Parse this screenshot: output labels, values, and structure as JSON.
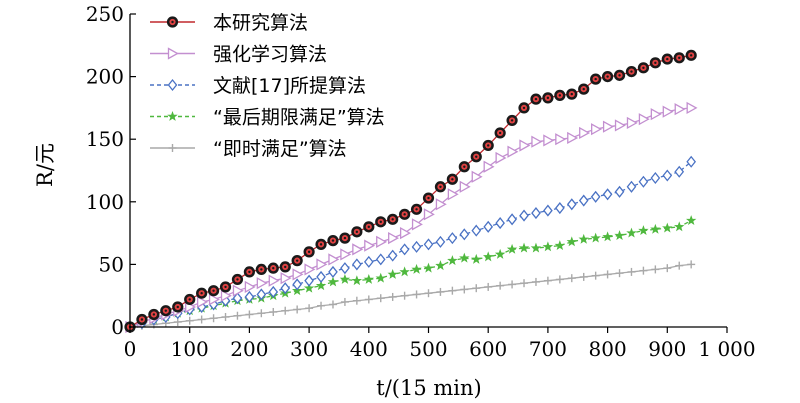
{
  "chart_data": {
    "type": "line",
    "xlabel": "t/(15 min)",
    "ylabel": "R/元",
    "xlim": [
      0,
      1000
    ],
    "ylim": [
      0,
      250
    ],
    "x_ticks": [
      0,
      100,
      200,
      300,
      400,
      500,
      600,
      700,
      800,
      900,
      1000
    ],
    "x_tick_labels": [
      "0",
      "100",
      "200",
      "300",
      "400",
      "500",
      "600",
      "700",
      "800",
      "900",
      "1 000"
    ],
    "y_ticks": [
      0,
      50,
      100,
      150,
      200,
      250
    ],
    "y_tick_labels": [
      "0",
      "50",
      "100",
      "150",
      "200",
      "250"
    ],
    "legend_position": "top-left",
    "series": [
      {
        "name": "本研究算法",
        "color": "#c0282d",
        "marker": "bullseye",
        "points": [
          [
            0,
            0
          ],
          [
            20,
            6
          ],
          [
            40,
            10
          ],
          [
            60,
            13
          ],
          [
            80,
            16
          ],
          [
            100,
            22
          ],
          [
            120,
            27
          ],
          [
            140,
            29
          ],
          [
            160,
            32
          ],
          [
            180,
            38
          ],
          [
            200,
            44
          ],
          [
            220,
            46
          ],
          [
            240,
            47
          ],
          [
            260,
            48
          ],
          [
            280,
            53
          ],
          [
            300,
            60
          ],
          [
            320,
            66
          ],
          [
            340,
            69
          ],
          [
            360,
            71
          ],
          [
            380,
            76
          ],
          [
            400,
            80
          ],
          [
            420,
            84
          ],
          [
            440,
            86
          ],
          [
            460,
            90
          ],
          [
            480,
            94
          ],
          [
            500,
            103
          ],
          [
            520,
            112
          ],
          [
            540,
            118
          ],
          [
            560,
            128
          ],
          [
            580,
            136
          ],
          [
            600,
            145
          ],
          [
            620,
            155
          ],
          [
            640,
            165
          ],
          [
            660,
            175
          ],
          [
            680,
            182
          ],
          [
            700,
            183
          ],
          [
            720,
            185
          ],
          [
            740,
            186
          ],
          [
            760,
            190
          ],
          [
            780,
            198
          ],
          [
            800,
            200
          ],
          [
            820,
            201
          ],
          [
            840,
            204
          ],
          [
            860,
            207
          ],
          [
            880,
            211
          ],
          [
            900,
            214
          ],
          [
            920,
            215
          ],
          [
            940,
            217
          ]
        ]
      },
      {
        "name": "强化学习算法",
        "color": "#c38fd0",
        "marker": "triangle-right",
        "points": [
          [
            0,
            0
          ],
          [
            20,
            4
          ],
          [
            40,
            7
          ],
          [
            60,
            10
          ],
          [
            80,
            13
          ],
          [
            100,
            16
          ],
          [
            120,
            20
          ],
          [
            140,
            22
          ],
          [
            160,
            25
          ],
          [
            180,
            29
          ],
          [
            200,
            32
          ],
          [
            220,
            35
          ],
          [
            240,
            37
          ],
          [
            260,
            39
          ],
          [
            280,
            42
          ],
          [
            300,
            46
          ],
          [
            320,
            50
          ],
          [
            340,
            54
          ],
          [
            360,
            58
          ],
          [
            380,
            62
          ],
          [
            400,
            65
          ],
          [
            420,
            68
          ],
          [
            440,
            71
          ],
          [
            460,
            75
          ],
          [
            480,
            82
          ],
          [
            500,
            90
          ],
          [
            520,
            98
          ],
          [
            540,
            106
          ],
          [
            560,
            112
          ],
          [
            580,
            120
          ],
          [
            600,
            128
          ],
          [
            620,
            135
          ],
          [
            640,
            140
          ],
          [
            660,
            145
          ],
          [
            680,
            148
          ],
          [
            700,
            149
          ],
          [
            720,
            150
          ],
          [
            740,
            151
          ],
          [
            760,
            155
          ],
          [
            780,
            158
          ],
          [
            800,
            160
          ],
          [
            820,
            161
          ],
          [
            840,
            163
          ],
          [
            860,
            166
          ],
          [
            880,
            170
          ],
          [
            900,
            172
          ],
          [
            920,
            174
          ],
          [
            940,
            175
          ]
        ]
      },
      {
        "name": "文献[17]所提算法",
        "color": "#4a72c4",
        "marker": "diamond",
        "points": [
          [
            0,
            0
          ],
          [
            20,
            3
          ],
          [
            40,
            6
          ],
          [
            60,
            8
          ],
          [
            80,
            11
          ],
          [
            100,
            14
          ],
          [
            120,
            16
          ],
          [
            140,
            18
          ],
          [
            160,
            21
          ],
          [
            180,
            23
          ],
          [
            200,
            24
          ],
          [
            220,
            26
          ],
          [
            240,
            28
          ],
          [
            260,
            31
          ],
          [
            280,
            34
          ],
          [
            300,
            37
          ],
          [
            320,
            40
          ],
          [
            340,
            44
          ],
          [
            360,
            47
          ],
          [
            380,
            50
          ],
          [
            400,
            52
          ],
          [
            420,
            54
          ],
          [
            440,
            57
          ],
          [
            460,
            62
          ],
          [
            480,
            64
          ],
          [
            500,
            66
          ],
          [
            520,
            68
          ],
          [
            540,
            71
          ],
          [
            560,
            74
          ],
          [
            580,
            77
          ],
          [
            600,
            80
          ],
          [
            620,
            83
          ],
          [
            640,
            86
          ],
          [
            660,
            89
          ],
          [
            680,
            91
          ],
          [
            700,
            93
          ],
          [
            720,
            95
          ],
          [
            740,
            98
          ],
          [
            760,
            101
          ],
          [
            780,
            104
          ],
          [
            800,
            106
          ],
          [
            820,
            108
          ],
          [
            840,
            112
          ],
          [
            860,
            116
          ],
          [
            880,
            119
          ],
          [
            900,
            121
          ],
          [
            920,
            124
          ],
          [
            940,
            132
          ]
        ]
      },
      {
        "name": "“最后期限满足”算法",
        "color": "#4fb83e",
        "marker": "star",
        "points": [
          [
            0,
            0
          ],
          [
            20,
            3
          ],
          [
            40,
            6
          ],
          [
            60,
            8
          ],
          [
            80,
            11
          ],
          [
            100,
            13
          ],
          [
            120,
            15
          ],
          [
            140,
            17
          ],
          [
            160,
            19
          ],
          [
            180,
            21
          ],
          [
            200,
            22
          ],
          [
            220,
            23
          ],
          [
            240,
            25
          ],
          [
            260,
            27
          ],
          [
            280,
            29
          ],
          [
            300,
            31
          ],
          [
            320,
            33
          ],
          [
            340,
            36
          ],
          [
            360,
            38
          ],
          [
            380,
            37
          ],
          [
            400,
            38
          ],
          [
            420,
            39
          ],
          [
            440,
            42
          ],
          [
            460,
            44
          ],
          [
            480,
            46
          ],
          [
            500,
            47
          ],
          [
            520,
            49
          ],
          [
            540,
            53
          ],
          [
            560,
            55
          ],
          [
            580,
            54
          ],
          [
            600,
            56
          ],
          [
            620,
            58
          ],
          [
            640,
            62
          ],
          [
            660,
            63
          ],
          [
            680,
            63
          ],
          [
            700,
            64
          ],
          [
            720,
            65
          ],
          [
            740,
            68
          ],
          [
            760,
            70
          ],
          [
            780,
            71
          ],
          [
            800,
            72
          ],
          [
            820,
            73
          ],
          [
            840,
            75
          ],
          [
            860,
            77
          ],
          [
            880,
            78
          ],
          [
            900,
            79
          ],
          [
            920,
            80
          ],
          [
            940,
            85
          ]
        ]
      },
      {
        "name": "“即时满足”算法",
        "color": "#a9a9a9",
        "marker": "plus",
        "points": [
          [
            0,
            0
          ],
          [
            20,
            1
          ],
          [
            40,
            2
          ],
          [
            60,
            3
          ],
          [
            80,
            4
          ],
          [
            100,
            5
          ],
          [
            120,
            6
          ],
          [
            140,
            7
          ],
          [
            160,
            8
          ],
          [
            180,
            9
          ],
          [
            200,
            10
          ],
          [
            220,
            11
          ],
          [
            240,
            12
          ],
          [
            260,
            13
          ],
          [
            280,
            14
          ],
          [
            300,
            15
          ],
          [
            320,
            17
          ],
          [
            340,
            18
          ],
          [
            360,
            20
          ],
          [
            380,
            21
          ],
          [
            400,
            22
          ],
          [
            420,
            23
          ],
          [
            440,
            24
          ],
          [
            460,
            25
          ],
          [
            480,
            26
          ],
          [
            500,
            27
          ],
          [
            520,
            28
          ],
          [
            540,
            29
          ],
          [
            560,
            30
          ],
          [
            580,
            31
          ],
          [
            600,
            32
          ],
          [
            620,
            33
          ],
          [
            640,
            34
          ],
          [
            660,
            35
          ],
          [
            680,
            36
          ],
          [
            700,
            37
          ],
          [
            720,
            38
          ],
          [
            740,
            39
          ],
          [
            760,
            40
          ],
          [
            780,
            41
          ],
          [
            800,
            42
          ],
          [
            820,
            43
          ],
          [
            840,
            44
          ],
          [
            860,
            45
          ],
          [
            880,
            46
          ],
          [
            900,
            47
          ],
          [
            920,
            49
          ],
          [
            940,
            50
          ]
        ]
      }
    ]
  }
}
